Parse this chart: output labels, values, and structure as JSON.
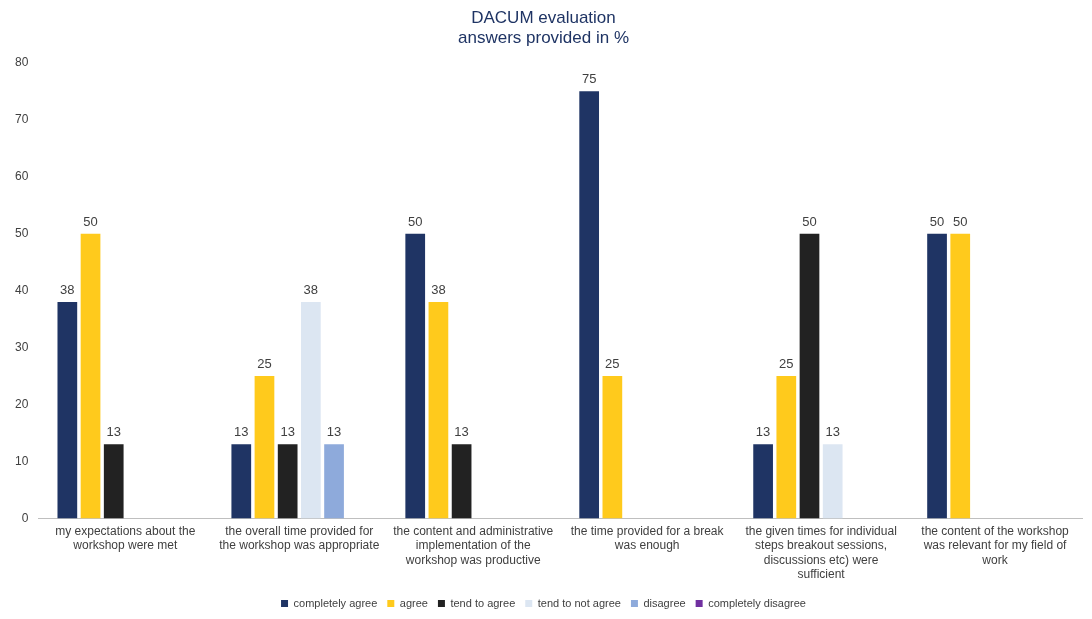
{
  "chart_data": {
    "type": "bar",
    "title": "DACUM evaluation",
    "subtitle": "answers provided in %",
    "categories": [
      "my expectations about the workshop were met",
      "the overall time provided for the workshop was appropriate",
      "the content and administrative implementation of the workshop was productive",
      "the time provided for a break was enough",
      "the given times for individual steps breakout sessions, discussions etc) were sufficient",
      "the content of the workshop was relevant for my field of work"
    ],
    "series": [
      {
        "name": "completely agree",
        "color": "#1f3464",
        "values": [
          38,
          13,
          50,
          75,
          13,
          50
        ]
      },
      {
        "name": "agree",
        "color": "#ffca1c",
        "values": [
          50,
          25,
          38,
          25,
          25,
          50
        ]
      },
      {
        "name": "tend to agree",
        "color": "#222222",
        "values": [
          13,
          13,
          13,
          null,
          50,
          null
        ]
      },
      {
        "name": "tend to not agree",
        "color": "#dce6f2",
        "values": [
          null,
          38,
          null,
          null,
          13,
          null
        ]
      },
      {
        "name": "disagree",
        "color": "#8eaadb",
        "values": [
          null,
          13,
          null,
          null,
          null,
          null
        ]
      },
      {
        "name": "completely disagree",
        "color": "#7030a0",
        "values": [
          null,
          null,
          null,
          null,
          null,
          null
        ]
      }
    ],
    "ylim": [
      0,
      80
    ],
    "yticks": [
      0,
      10,
      20,
      30,
      40,
      50,
      60,
      70,
      80
    ],
    "grid": false,
    "legend": "bottom",
    "data_labels": true
  }
}
